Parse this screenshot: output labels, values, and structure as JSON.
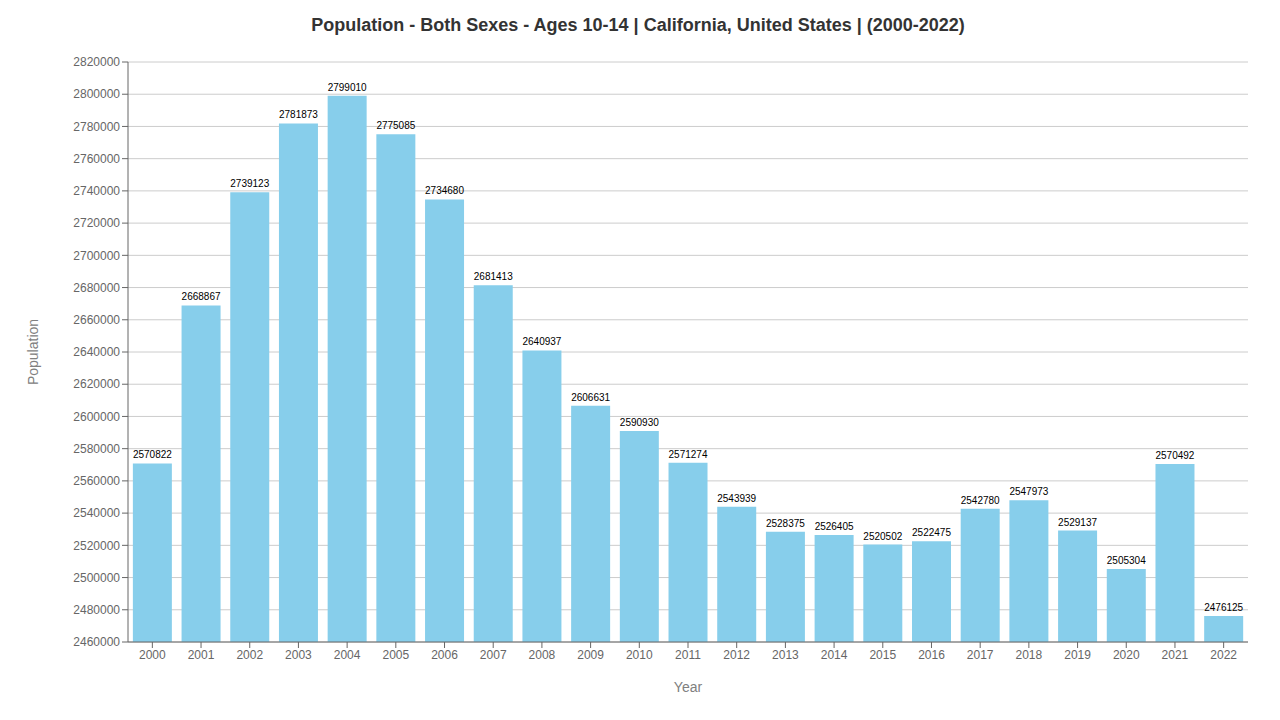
{
  "chart_data": {
    "type": "bar",
    "title": "Population - Both Sexes - Ages 10-14 | California, United States |  (2000-2022)",
    "xlabel": "Year",
    "ylabel": "Population",
    "categories": [
      "2000",
      "2001",
      "2002",
      "2003",
      "2004",
      "2005",
      "2006",
      "2007",
      "2008",
      "2009",
      "2010",
      "2011",
      "2012",
      "2013",
      "2014",
      "2015",
      "2016",
      "2017",
      "2018",
      "2019",
      "2020",
      "2021",
      "2022"
    ],
    "values": [
      2570822,
      2668867,
      2739123,
      2781873,
      2799010,
      2775085,
      2734680,
      2681413,
      2640937,
      2606631,
      2590930,
      2571274,
      2543939,
      2528375,
      2526405,
      2520502,
      2522475,
      2542780,
      2547973,
      2529137,
      2505304,
      2570492,
      2476125
    ],
    "color": "#87CEEB",
    "ylim": [
      2460000,
      2820000
    ],
    "yticks": [
      2460000,
      2480000,
      2500000,
      2520000,
      2540000,
      2560000,
      2580000,
      2600000,
      2620000,
      2640000,
      2660000,
      2680000,
      2700000,
      2720000,
      2740000,
      2760000,
      2780000,
      2800000,
      2820000
    ],
    "grid": true,
    "data_labels": true
  }
}
